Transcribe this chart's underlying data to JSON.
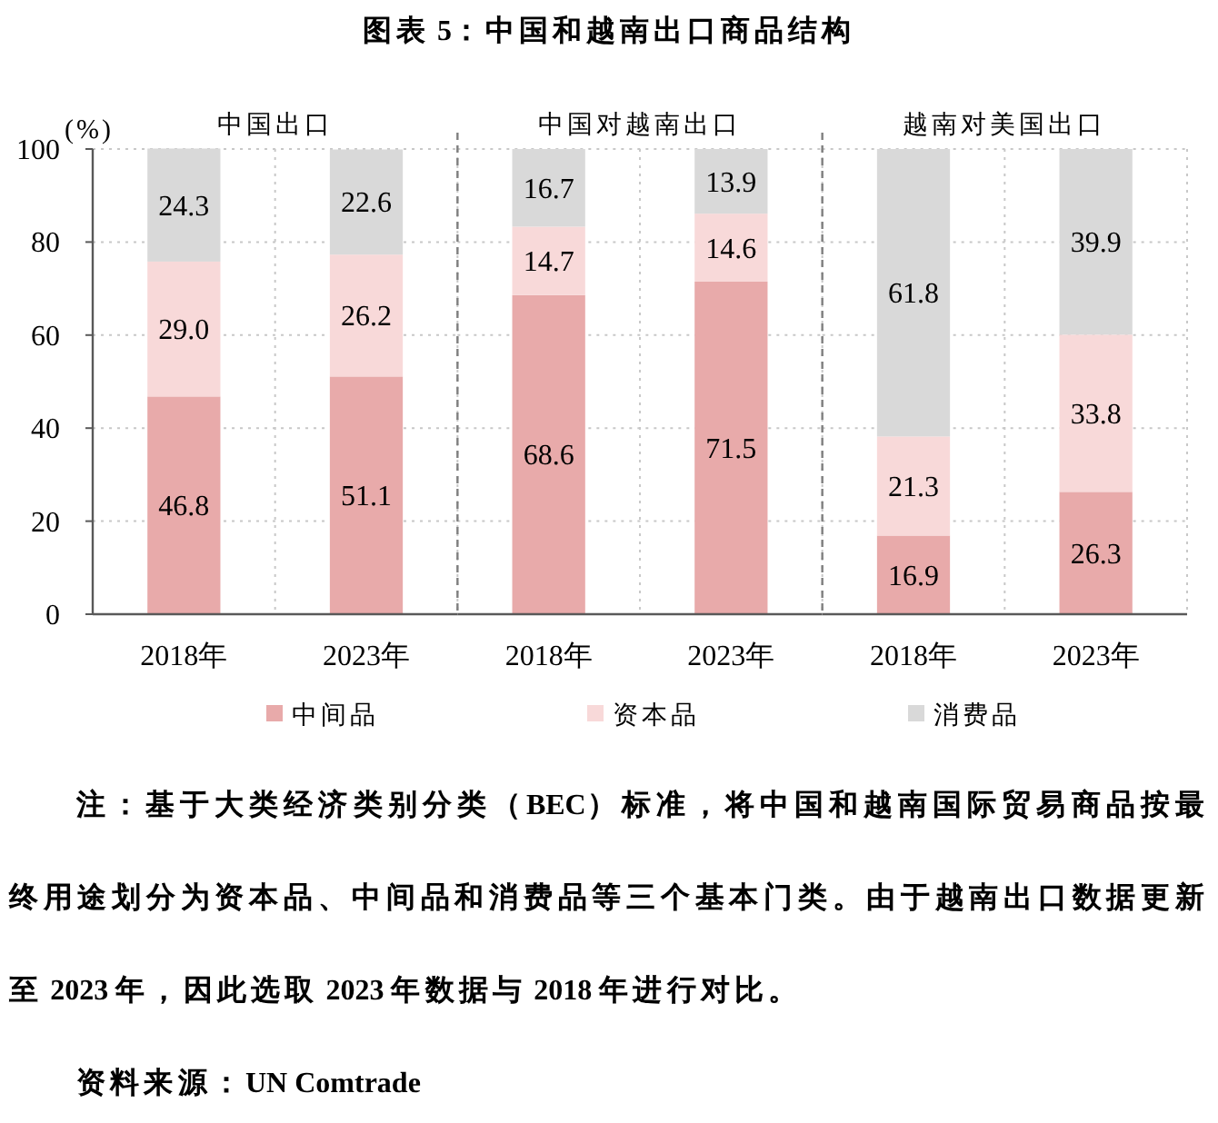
{
  "chart_data": [
    {
      "type": "other",
      "title": "图表 5：中国和越南出口商品结构",
      "annotations": [
        "注：基于大类经济类别分类（BEC）标准，将中国和越南国际贸易商品按最终用途划分为资本品、中间品和消费品等三个基本门类。由于越南出口数据更新至 2023 年，因此选取 2023 年数据与 2018 年进行对比。",
        "资料来源：UN Comtrade"
      ]
    },
    {
      "type": "bar",
      "stacked": true,
      "title": "中国出口",
      "ylabel": "(%)",
      "categories": [
        "2018年",
        "2023年"
      ],
      "series": [
        {
          "name": "中间品",
          "color": "#e8aaaa",
          "values": [
            46.8,
            51.1
          ],
          "value_labels": [
            "46.8",
            "51.1"
          ]
        },
        {
          "name": "资本品",
          "color": "#f8d9d9",
          "values": [
            29.0,
            26.2
          ],
          "value_labels": [
            "29.0",
            "26.2"
          ]
        },
        {
          "name": "消费品",
          "color": "#d9d9d9",
          "values": [
            24.3,
            22.6
          ],
          "value_labels": [
            "24.3",
            "22.6"
          ]
        }
      ],
      "ylim": [
        0,
        100
      ],
      "yticks": [
        0,
        20,
        40,
        60,
        80,
        100
      ],
      "grid": true,
      "legend": "bottom"
    },
    {
      "type": "bar",
      "stacked": true,
      "title": "中国对越南出口",
      "categories": [
        "2018年",
        "2023年"
      ],
      "series": [
        {
          "color": "#e8aaaa",
          "values": [
            68.6,
            71.5
          ],
          "value_labels": [
            "68.6",
            "71.5"
          ]
        },
        {
          "color": "#f8d9d9",
          "values": [
            14.7,
            14.6
          ],
          "value_labels": [
            "14.7",
            "14.6"
          ]
        },
        {
          "color": "#d9d9d9",
          "values": [
            16.7,
            13.9
          ],
          "value_labels": [
            "16.7",
            "13.9"
          ]
        }
      ],
      "ylim": [
        0,
        100
      ],
      "yticks": [
        0,
        20,
        40,
        60,
        80,
        100
      ],
      "tick_labels": "x",
      "grid": true
    },
    {
      "type": "bar",
      "stacked": true,
      "title": "越南对美国出口",
      "categories": [
        "2018年",
        "2023年"
      ],
      "series": [
        {
          "color": "#e8aaaa",
          "values": [
            16.9,
            26.3
          ],
          "value_labels": [
            "16.9",
            "26.3"
          ]
        },
        {
          "color": "#f8d9d9",
          "values": [
            21.3,
            33.8
          ],
          "value_labels": [
            "21.3",
            "33.8"
          ]
        },
        {
          "color": "#d9d9d9",
          "values": [
            61.8,
            39.9
          ],
          "value_labels": [
            "61.8",
            "39.9"
          ]
        }
      ],
      "ylim": [
        0,
        100
      ],
      "yticks": [
        0,
        20,
        40,
        60,
        80,
        100
      ],
      "tick_labels": "x",
      "grid": true
    }
  ]
}
